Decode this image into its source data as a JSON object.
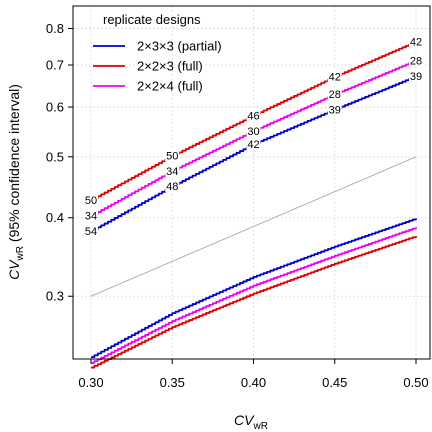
{
  "chart_data": {
    "type": "line",
    "x_axis": {
      "label": {
        "main": "CV",
        "sub": "wR"
      },
      "range": [
        0.3,
        0.5
      ],
      "ticks": [
        "0.30",
        "0.35",
        "0.40",
        "0.45",
        "0.50"
      ]
    },
    "y_axis": {
      "label": {
        "main": "CV",
        "sub": "wR",
        "suffix": " (95% confidence interval)"
      },
      "scale": "log",
      "range": [
        0.25,
        0.85
      ],
      "ticks": [
        "0.3",
        "0.4",
        "0.5",
        "0.6",
        "0.7",
        "0.8"
      ]
    },
    "grid": true,
    "legend": {
      "title": "replicate designs",
      "position": "top-left"
    },
    "identity_line": {
      "color": "#a0a0a0",
      "points": [
        [
          0.3,
          0.3
        ],
        [
          0.5,
          0.5
        ]
      ]
    },
    "series": [
      {
        "name": "2×3×3 (partial)",
        "color": "#0000cc",
        "upper": [
          [
            0.3,
            0.381
          ],
          [
            0.35,
            0.449
          ],
          [
            0.4,
            0.524
          ],
          [
            0.45,
            0.595
          ],
          [
            0.5,
            0.672
          ]
        ],
        "lower": [
          [
            0.3,
            0.24
          ],
          [
            0.35,
            0.282
          ],
          [
            0.4,
            0.322
          ],
          [
            0.45,
            0.36
          ],
          [
            0.5,
            0.399
          ]
        ],
        "n_labels": [
          {
            "x": 0.3,
            "text": "54"
          },
          {
            "x": 0.35,
            "text": "48"
          },
          {
            "x": 0.4,
            "text": "42"
          },
          {
            "x": 0.45,
            "text": "39"
          },
          {
            "x": 0.5,
            "text": "39"
          }
        ]
      },
      {
        "name": "2×2×3 (full)",
        "color": "#dd0000",
        "upper": [
          [
            0.3,
            0.427
          ],
          [
            0.35,
            0.502
          ],
          [
            0.4,
            0.582
          ],
          [
            0.45,
            0.671
          ],
          [
            0.5,
            0.763
          ]
        ],
        "lower": [
          [
            0.3,
            0.231
          ],
          [
            0.35,
            0.268
          ],
          [
            0.4,
            0.303
          ],
          [
            0.45,
            0.338
          ],
          [
            0.5,
            0.374
          ]
        ],
        "n_labels": [
          {
            "x": 0.3,
            "text": "50"
          },
          {
            "x": 0.35,
            "text": "50"
          },
          {
            "x": 0.4,
            "text": "46"
          },
          {
            "x": 0.45,
            "text": "42"
          },
          {
            "x": 0.5,
            "text": "42"
          }
        ]
      },
      {
        "name": "2×2×4 (full)",
        "color": "#ee00ee",
        "upper": [
          [
            0.3,
            0.403
          ],
          [
            0.35,
            0.475
          ],
          [
            0.4,
            0.55
          ],
          [
            0.45,
            0.629
          ],
          [
            0.5,
            0.712
          ]
        ],
        "lower": [
          [
            0.3,
            0.235
          ],
          [
            0.35,
            0.274
          ],
          [
            0.4,
            0.312
          ],
          [
            0.45,
            0.348
          ],
          [
            0.5,
            0.386
          ]
        ],
        "n_labels": [
          {
            "x": 0.3,
            "text": "34"
          },
          {
            "x": 0.35,
            "text": "34"
          },
          {
            "x": 0.4,
            "text": "30"
          },
          {
            "x": 0.45,
            "text": "28"
          },
          {
            "x": 0.5,
            "text": "28"
          }
        ]
      }
    ]
  }
}
